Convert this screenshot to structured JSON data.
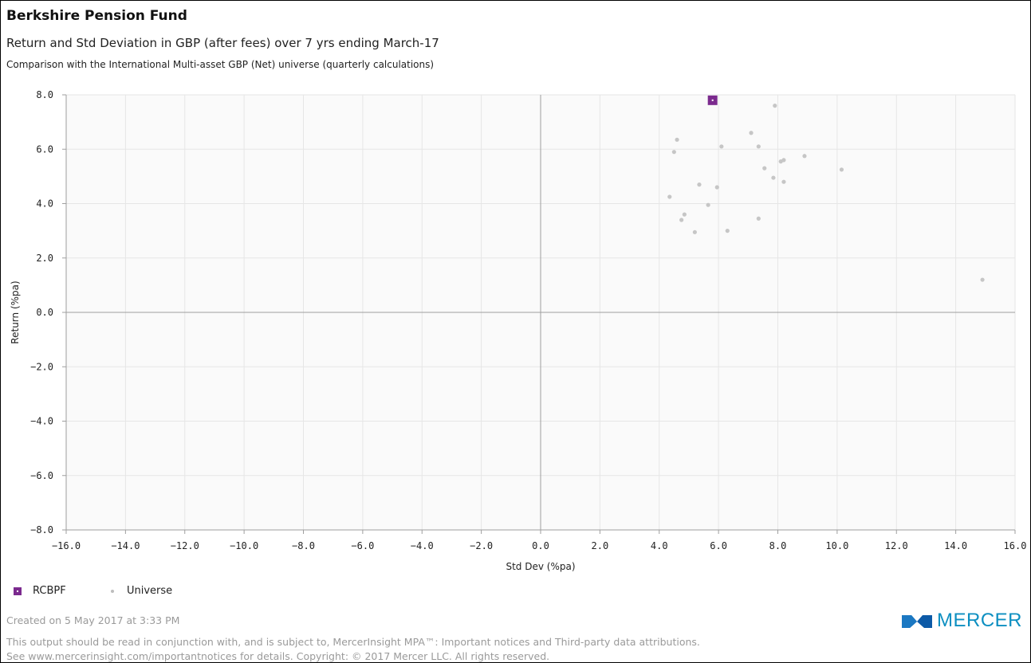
{
  "header": {
    "title": "Berkshire Pension Fund",
    "subtitle": "Return and Std Deviation in GBP (after fees) over 7 yrs ending March-17",
    "comparison": "Comparison with the International Multi-asset GBP (Net) universe  (quarterly calculations)"
  },
  "chart_data": {
    "type": "scatter",
    "xlabel": "Std Dev (%pa)",
    "ylabel": "Return (%pa)",
    "xlim": [
      -16,
      16
    ],
    "ylim": [
      -8,
      8
    ],
    "x_ticks": [
      "−16.0",
      "−14.0",
      "−12.0",
      "−10.0",
      "−8.0",
      "−6.0",
      "−4.0",
      "−2.0",
      "0.0",
      "2.0",
      "4.0",
      "6.0",
      "8.0",
      "10.0",
      "12.0",
      "14.0",
      "16.0"
    ],
    "y_ticks": [
      "8.0",
      "6.0",
      "4.0",
      "2.0",
      "0.0",
      "−2.0",
      "−4.0",
      "−6.0",
      "−8.0"
    ],
    "grid": true,
    "legend_position": "bottom-left",
    "series": [
      {
        "name": "RCBPF",
        "marker": "square",
        "color": "#7b2a8e",
        "points": [
          [
            5.8,
            7.8
          ]
        ]
      },
      {
        "name": "Universe",
        "marker": "dot",
        "color": "#c6c6c6",
        "points": [
          [
            4.6,
            6.35
          ],
          [
            4.5,
            5.9
          ],
          [
            7.1,
            6.6
          ],
          [
            7.9,
            7.6
          ],
          [
            7.35,
            6.1
          ],
          [
            6.1,
            6.1
          ],
          [
            7.55,
            5.3
          ],
          [
            8.1,
            5.55
          ],
          [
            8.2,
            5.6
          ],
          [
            8.9,
            5.75
          ],
          [
            10.15,
            5.25
          ],
          [
            7.85,
            4.95
          ],
          [
            8.2,
            4.8
          ],
          [
            5.35,
            4.7
          ],
          [
            5.95,
            4.6
          ],
          [
            4.35,
            4.25
          ],
          [
            5.65,
            3.95
          ],
          [
            4.85,
            3.6
          ],
          [
            4.75,
            3.4
          ],
          [
            7.35,
            3.45
          ],
          [
            5.2,
            2.95
          ],
          [
            6.3,
            3.0
          ],
          [
            14.9,
            1.2
          ]
        ]
      }
    ]
  },
  "legend": {
    "items": [
      {
        "label": "RCBPF"
      },
      {
        "label": "Universe"
      }
    ]
  },
  "footer": {
    "created": "Created on 5 May 2017 at 3:33 PM",
    "notice_line1": "This output should be read in conjunction with, and is subject to, MercerInsight MPA™: Important notices and Third-party data attributions.",
    "notice_line2": "See www.mercerinsight.com/importantnotices for details. Copyright: © 2017 Mercer LLC.  All rights reserved.",
    "logo_text": "MERCER"
  }
}
